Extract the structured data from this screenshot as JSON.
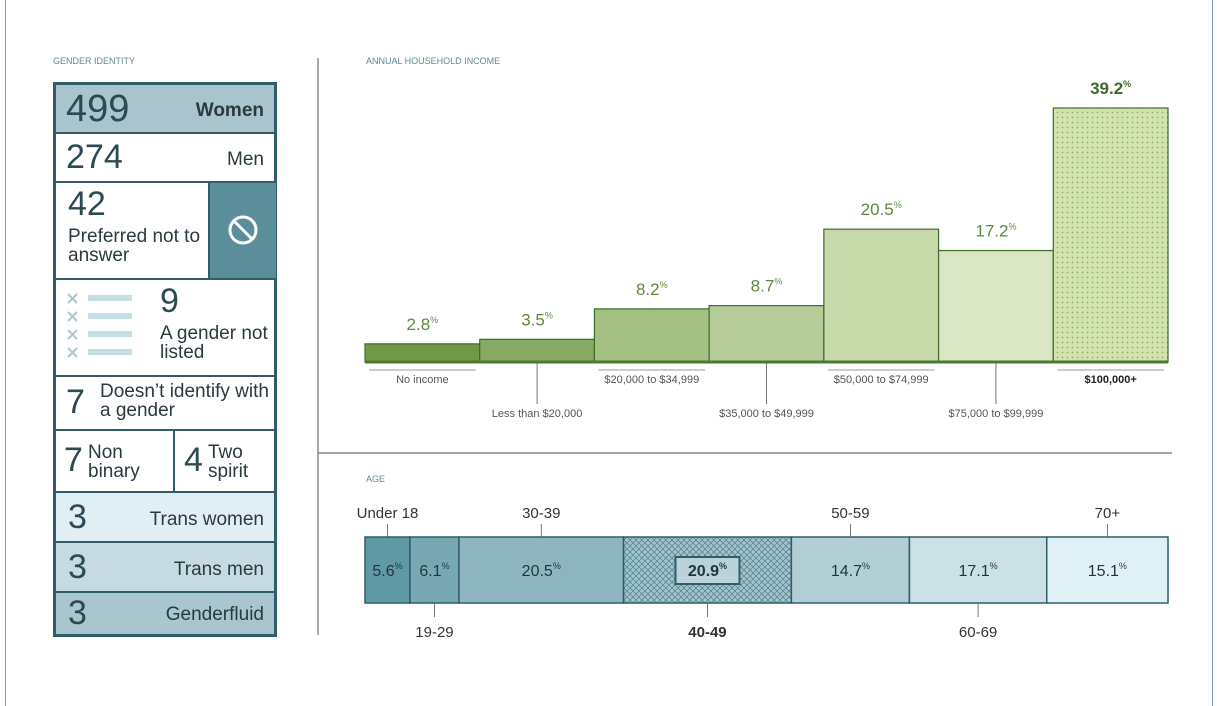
{
  "gender_identity": {
    "title": "GENDER IDENTITY",
    "rows": [
      {
        "count": 499,
        "label": "Women"
      },
      {
        "count": 274,
        "label": "Men"
      },
      {
        "count": 42,
        "label": "Preferred not to answer"
      },
      {
        "count": 9,
        "label": "A gender not listed"
      },
      {
        "count": 7,
        "label": "Doesn’t identify with a gender"
      },
      {
        "count": 7,
        "label": "Non binary"
      },
      {
        "count": 4,
        "label": "Two spirit"
      },
      {
        "count": 3,
        "label": "Trans women"
      },
      {
        "count": 3,
        "label": "Trans men"
      },
      {
        "count": 3,
        "label": "Genderfluid"
      }
    ]
  },
  "chart_data": [
    {
      "type": "bar",
      "title": "ANNUAL HOUSEHOLD INCOME",
      "categories": [
        "No income",
        "Less than $20,000",
        "$20,000 to $34,999",
        "$35,000 to $49,999",
        "$50,000 to $74,999",
        "$75,000 to $99,999",
        "$100,000+"
      ],
      "values": [
        2.8,
        3.5,
        8.2,
        8.7,
        20.5,
        17.2,
        39.2
      ],
      "unit": "%",
      "colors": [
        "#6e9a48",
        "#88aa62",
        "#a5c083",
        "#b6cc98",
        "#c8d9ac",
        "#d9e5c3",
        "#d3e3ad"
      ]
    },
    {
      "type": "stacked-bar",
      "title": "AGE",
      "categories": [
        "Under 18",
        "19-29",
        "30-39",
        "40-49",
        "50-59",
        "60-69",
        "70+"
      ],
      "values": [
        5.6,
        6.1,
        20.5,
        20.9,
        14.7,
        17.1,
        15.1
      ],
      "unit": "%",
      "colors": [
        "#5f99a4",
        "#78a9b3",
        "#8fb6bf",
        "#a3c4cb",
        "#b3cfd6",
        "#cae0e5",
        "#e0f1f6"
      ]
    }
  ]
}
